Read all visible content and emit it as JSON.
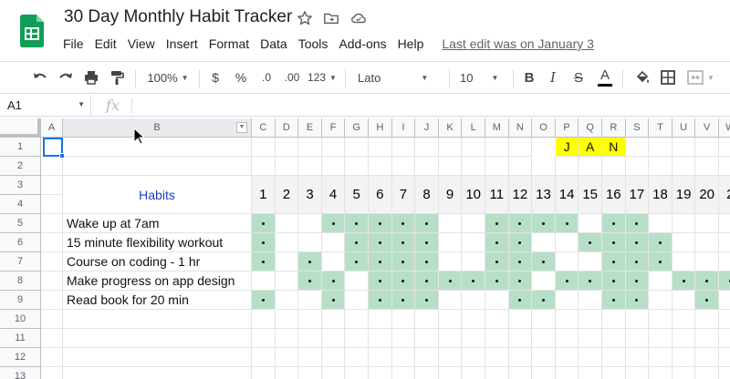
{
  "document": {
    "title": "30 Day Monthly Habit Tracker",
    "last_edit": "Last edit was on January 3"
  },
  "menu": [
    "File",
    "Edit",
    "View",
    "Insert",
    "Format",
    "Data",
    "Tools",
    "Add-ons",
    "Help"
  ],
  "toolbar": {
    "zoom": "100%",
    "currency": "$",
    "percent": "%",
    "decrease_decimal": ".0",
    "increase_decimal": ".00",
    "number_format": "123",
    "font": "Lato",
    "font_size": "10",
    "bold": "B",
    "italic": "I",
    "strikethrough": "S",
    "text_color": "A"
  },
  "formula_bar": {
    "cell_ref": "A1",
    "fx": "fx",
    "value": ""
  },
  "columns": [
    "A",
    "B",
    "C",
    "D",
    "E",
    "F",
    "G",
    "H",
    "I",
    "J",
    "K",
    "L",
    "M",
    "N",
    "O",
    "P",
    "Q",
    "R",
    "S",
    "T",
    "U",
    "V",
    "W"
  ],
  "rows": [
    "1",
    "2",
    "3",
    "4",
    "5",
    "6",
    "7",
    "8",
    "9",
    "10",
    "11",
    "12",
    "13"
  ],
  "sheet": {
    "month_letters": [
      "J",
      "A",
      "N"
    ],
    "habits_header": "Habits",
    "days": [
      "1",
      "2",
      "3",
      "4",
      "5",
      "6",
      "7",
      "8",
      "9",
      "10",
      "11",
      "12",
      "13",
      "14",
      "15",
      "16",
      "17",
      "18",
      "19",
      "20",
      "2"
    ],
    "habits": [
      {
        "name": "Wake up at 7am",
        "checked_days": [
          1,
          4,
          5,
          6,
          7,
          8,
          11,
          12,
          13,
          14,
          16,
          17
        ]
      },
      {
        "name": "15 minute flexibility workout",
        "checked_days": [
          1,
          5,
          6,
          7,
          8,
          11,
          12,
          15,
          16,
          17,
          18
        ]
      },
      {
        "name": "Course on coding - 1 hr",
        "checked_days": [
          1,
          3,
          5,
          6,
          7,
          8,
          11,
          12,
          13,
          16,
          17,
          18
        ]
      },
      {
        "name": "Make progress on app design",
        "checked_days": [
          3,
          4,
          6,
          7,
          8,
          9,
          10,
          11,
          12,
          14,
          15,
          16,
          17,
          19,
          20,
          21
        ]
      },
      {
        "name": "Read book for 20 min",
        "checked_days": [
          1,
          4,
          6,
          7,
          8,
          12,
          13,
          16,
          17,
          20
        ]
      }
    ]
  },
  "colors": {
    "checked_fill": "#b7dfc7",
    "month_fill": "#ffff00",
    "habits_header_text": "#1a3ec4",
    "sheets_green": "#0f9d58",
    "selection": "#1a73e8"
  }
}
